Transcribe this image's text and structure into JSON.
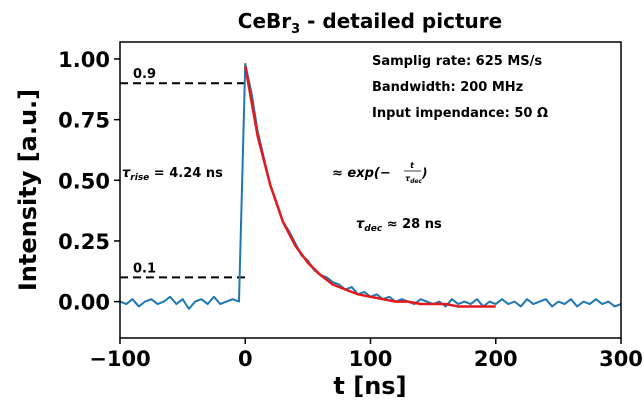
{
  "chart_data": {
    "type": "line",
    "title": {
      "main": "CeBr",
      "sub": "3",
      "rest": " - detailed picture"
    },
    "x_label": "t [ns]",
    "y_label": "Intensity [a.u.]",
    "xlim": [
      -100,
      300
    ],
    "ylim": [
      -0.15,
      1.07
    ],
    "xticks": [
      {
        "value": -100,
        "label": "−100"
      },
      0,
      100,
      200,
      300
    ],
    "yticks": [
      {
        "value": 0,
        "label": "0.00"
      },
      {
        "value": 0.25,
        "label": "0.25"
      },
      {
        "value": 0.5,
        "label": "0.50"
      },
      {
        "value": 0.75,
        "label": "0.75"
      },
      {
        "value": 1,
        "label": "1.00"
      }
    ],
    "reference_lines": [
      0.9,
      0.1
    ],
    "reference_color": "#000000",
    "series": [
      {
        "color": "#1f77b4",
        "x": [
          -100,
          -95,
          -90,
          -85,
          -80,
          -75,
          -70,
          -65,
          -60,
          -55,
          -50,
          -45,
          -40,
          -35,
          -30,
          -25,
          -20,
          -15,
          -10,
          -5,
          0,
          5,
          10,
          15,
          20,
          25,
          30,
          35,
          40,
          45,
          50,
          55,
          60,
          65,
          70,
          75,
          80,
          85,
          90,
          95,
          100,
          105,
          110,
          115,
          120,
          125,
          130,
          135,
          140,
          145,
          150,
          155,
          160,
          165,
          170,
          175,
          180,
          185,
          190,
          195,
          200,
          205,
          210,
          215,
          220,
          225,
          230,
          235,
          240,
          245,
          250,
          255,
          260,
          265,
          270,
          275,
          280,
          285,
          290,
          295,
          300
        ],
        "values": [
          0.0,
          -0.01,
          0.01,
          -0.02,
          0.0,
          0.01,
          -0.01,
          0.0,
          0.02,
          -0.01,
          0.01,
          -0.03,
          0.0,
          0.01,
          -0.01,
          0.02,
          -0.01,
          0.0,
          0.01,
          0.0,
          0.98,
          0.86,
          0.7,
          0.59,
          0.48,
          0.41,
          0.33,
          0.29,
          0.24,
          0.19,
          0.17,
          0.13,
          0.11,
          0.1,
          0.08,
          0.07,
          0.05,
          0.06,
          0.03,
          0.04,
          0.02,
          0.03,
          0.01,
          0.02,
          0.0,
          0.01,
          0.0,
          -0.01,
          0.01,
          0.0,
          -0.01,
          0.0,
          -0.02,
          0.01,
          -0.01,
          0.0,
          -0.01,
          0.01,
          -0.02,
          0.0,
          -0.01,
          0.01,
          -0.01,
          0.0,
          -0.02,
          0.01,
          -0.01,
          0.0,
          0.01,
          -0.02,
          0.0,
          -0.01,
          0.01,
          -0.02,
          0.0,
          -0.01,
          0.01,
          -0.01,
          0.0,
          -0.02,
          -0.01
        ]
      },
      {
        "color": "#e31a1c",
        "x": [
          0,
          10,
          20,
          30,
          40,
          50,
          60,
          70,
          80,
          90,
          100,
          110,
          120,
          130,
          140,
          150,
          160,
          170,
          180,
          190,
          200
        ],
        "values": [
          0.97,
          0.68,
          0.48,
          0.33,
          0.23,
          0.16,
          0.11,
          0.07,
          0.05,
          0.03,
          0.02,
          0.01,
          0.0,
          0.0,
          -0.01,
          -0.01,
          -0.01,
          -0.02,
          -0.02,
          -0.02,
          -0.02
        ]
      }
    ],
    "annotations": {
      "rise": {
        "symbol": "τ",
        "sub": "rise",
        "text": " = 4.24 ns"
      },
      "fit": {
        "prefix": "≈ exp(−",
        "numerator": "t",
        "denominator": "τ",
        "denominator_sub": "dec",
        "suffix": ")"
      },
      "decay": {
        "symbol": "τ",
        "sub": "dec",
        "text": " ≈ 28 ns"
      },
      "info": [
        "Samplig rate: 625 MS/s",
        "Bandwidth: 200 MHz",
        "Input impendance: 50 Ω"
      ]
    }
  }
}
